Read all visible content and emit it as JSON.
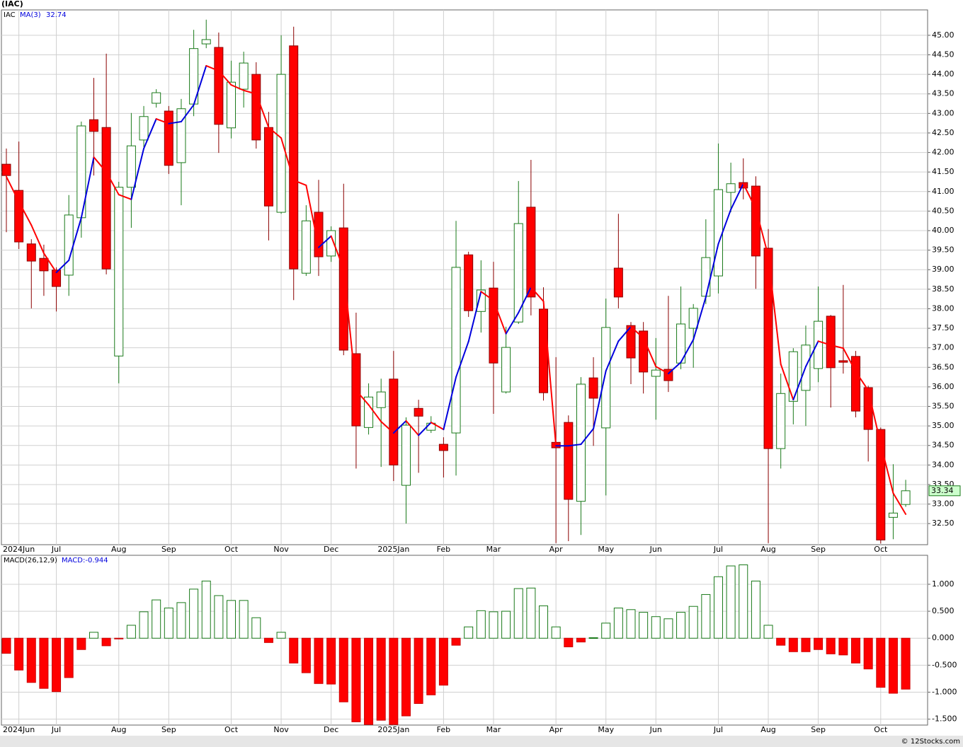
{
  "chart_data": [
    {
      "type": "candlestick",
      "title": "(IAC)",
      "name": "IAC",
      "categories": [
        null,
        "2024Jun",
        null,
        null,
        "Jul",
        null,
        null,
        null,
        null,
        "Aug",
        null,
        null,
        null,
        "Sep",
        null,
        null,
        null,
        null,
        "Oct",
        null,
        null,
        null,
        "Nov",
        null,
        null,
        null,
        "Dec",
        null,
        null,
        null,
        null,
        "2025Jan",
        null,
        null,
        null,
        "Feb",
        null,
        null,
        null,
        "Mar",
        null,
        null,
        null,
        null,
        "Apr",
        null,
        null,
        null,
        "May",
        null,
        null,
        null,
        "Jun",
        null,
        null,
        null,
        null,
        "Jul",
        null,
        null,
        null,
        "Aug",
        null,
        null,
        null,
        "Sep",
        null,
        null,
        null,
        null,
        "Oct",
        null,
        null
      ],
      "open": [
        41.7,
        41.03,
        39.66,
        39.29,
        38.99,
        38.86,
        40.33,
        42.84,
        42.64,
        36.79,
        41.11,
        42.32,
        43.26,
        43.06,
        41.74,
        43.24,
        44.78,
        44.69,
        42.63,
        43.62,
        44.0,
        42.64,
        40.47,
        44.73,
        38.91,
        40.47,
        39.35,
        40.07,
        36.85,
        34.96,
        35.47,
        36.2,
        33.48,
        35.45,
        34.89,
        34.53,
        34.82,
        39.38,
        37.93,
        38.53,
        35.87,
        37.66,
        40.6,
        37.99,
        34.58,
        35.09,
        33.07,
        36.23,
        34.95,
        39.04,
        37.57,
        37.43,
        36.27,
        36.45,
        36.61,
        37.5,
        38.32,
        38.84,
        40.98,
        41.23,
        41.14,
        39.55,
        34.42,
        35.63,
        35.91,
        36.47,
        37.81,
        36.67,
        36.78,
        35.98,
        34.91,
        32.66,
        32.99
      ],
      "high": [
        42.1,
        42.28,
        39.78,
        39.64,
        39.06,
        40.91,
        42.79,
        43.91,
        44.53,
        41.25,
        43.01,
        43.19,
        43.62,
        43.19,
        43.37,
        45.14,
        45.4,
        45.07,
        44.35,
        44.58,
        44.31,
        43.04,
        45.0,
        45.22,
        40.65,
        41.3,
        40.11,
        41.2,
        37.9,
        36.09,
        36.21,
        36.92,
        35.22,
        35.67,
        35.25,
        34.71,
        40.25,
        39.46,
        39.24,
        39.2,
        37.54,
        41.27,
        41.81,
        38.55,
        36.76,
        35.27,
        36.25,
        36.76,
        38.26,
        40.43,
        37.66,
        37.66,
        37.25,
        38.33,
        38.57,
        38.12,
        40.29,
        42.23,
        41.74,
        41.85,
        41.39,
        40.04,
        36.34,
        36.99,
        37.57,
        38.57,
        37.84,
        38.61,
        36.92,
        36.03,
        34.96,
        34.02,
        33.62
      ],
      "low": [
        39.96,
        39.53,
        38.01,
        38.33,
        37.93,
        38.33,
        39.82,
        41.41,
        38.88,
        36.09,
        40.07,
        42.14,
        43.15,
        41.45,
        40.65,
        42.93,
        44.67,
        41.99,
        42.36,
        43.15,
        42.1,
        39.75,
        40.43,
        38.22,
        38.84,
        38.84,
        39.2,
        36.81,
        33.91,
        34.78,
        33.95,
        33.59,
        32.5,
        33.8,
        34.82,
        33.68,
        33.73,
        37.79,
        37.39,
        35.31,
        35.83,
        37.61,
        37.83,
        35.65,
        32.0,
        32.05,
        32.21,
        34.49,
        33.22,
        38.01,
        36.07,
        35.83,
        35.16,
        35.87,
        36.45,
        36.49,
        38.12,
        38.39,
        40.47,
        40.8,
        38.51,
        32.0,
        33.91,
        35.04,
        35.0,
        36.12,
        35.47,
        36.34,
        35.22,
        34.09,
        31.99,
        32.1,
        32.93
      ],
      "close": [
        41.41,
        39.71,
        39.22,
        38.97,
        38.57,
        40.4,
        42.68,
        42.54,
        39.02,
        41.11,
        42.17,
        42.92,
        43.53,
        41.67,
        43.12,
        44.66,
        44.89,
        42.72,
        43.8,
        44.29,
        42.32,
        40.63,
        44.0,
        39.02,
        40.25,
        39.33,
        40.0,
        36.94,
        35.0,
        35.74,
        35.87,
        34.0,
        35.02,
        35.25,
        35.07,
        34.37,
        39.06,
        37.95,
        38.48,
        36.61,
        37.01,
        40.18,
        38.3,
        35.85,
        34.44,
        33.12,
        36.07,
        35.71,
        37.52,
        38.3,
        36.74,
        36.38,
        36.43,
        36.16,
        37.61,
        38.01,
        39.31,
        41.05,
        41.2,
        41.09,
        39.35,
        34.42,
        35.83,
        36.9,
        37.07,
        37.68,
        36.49,
        36.63,
        35.38,
        34.91,
        32.08,
        32.77,
        33.34
      ],
      "up_color": "#1a7a1a",
      "down_color": "#ff0000",
      "ma": {
        "name": "MA(3)",
        "up_color": "#0000dd",
        "down_color": "#ff0000",
        "values": [
          41.38,
          40.74,
          40.14,
          39.42,
          38.93,
          39.24,
          40.33,
          41.88,
          41.5,
          40.92,
          40.8,
          42.1,
          42.86,
          42.74,
          42.79,
          43.22,
          44.22,
          44.09,
          43.73,
          43.59,
          43.5,
          42.64,
          42.37,
          41.29,
          41.16,
          39.57,
          39.86,
          39.02,
          35.91,
          35.54,
          35.11,
          34.82,
          35.13,
          34.76,
          35.09,
          34.91,
          36.25,
          37.16,
          38.44,
          38.21,
          37.36,
          37.9,
          38.55,
          38.19,
          34.49,
          34.49,
          34.53,
          34.93,
          36.41,
          37.17,
          37.54,
          37.25,
          36.52,
          36.34,
          36.63,
          37.21,
          38.3,
          39.66,
          40.54,
          41.2,
          40.56,
          39.35,
          36.58,
          35.67,
          36.52,
          37.17,
          37.07,
          36.99,
          36.39,
          35.91,
          34.53,
          33.28,
          32.74
        ]
      },
      "ylim": [
        31.96,
        45.65
      ],
      "yticks": [
        {
          "value": 32.5,
          "label": "32.50"
        },
        {
          "value": 33,
          "label": "33.00"
        },
        {
          "value": 33.5,
          "label": "33.50"
        },
        {
          "value": 34,
          "label": "34.00"
        },
        {
          "value": 34.5,
          "label": "34.50"
        },
        {
          "value": 35,
          "label": "35.00"
        },
        {
          "value": 35.5,
          "label": "35.50"
        },
        {
          "value": 36,
          "label": "36.00"
        },
        {
          "value": 36.5,
          "label": "36.50"
        },
        {
          "value": 37,
          "label": "37.00"
        },
        {
          "value": 37.5,
          "label": "37.50"
        },
        {
          "value": 38,
          "label": "38.00"
        },
        {
          "value": 38.5,
          "label": "38.50"
        },
        {
          "value": 39,
          "label": "39.00"
        },
        {
          "value": 39.5,
          "label": "39.50"
        },
        {
          "value": 40,
          "label": "40.00"
        },
        {
          "value": 40.5,
          "label": "40.50"
        },
        {
          "value": 41,
          "label": "41.00"
        },
        {
          "value": 41.5,
          "label": "41.50"
        },
        {
          "value": 42,
          "label": "42.00"
        },
        {
          "value": 42.5,
          "label": "42.50"
        },
        {
          "value": 43,
          "label": "43.00"
        },
        {
          "value": 43.5,
          "label": "43.50"
        },
        {
          "value": 44,
          "label": "44.00"
        },
        {
          "value": 44.5,
          "label": "44.50"
        },
        {
          "value": 45,
          "label": "45.00"
        }
      ],
      "grid": true
    },
    {
      "type": "bar",
      "name": "MACD(26,12,9)",
      "value_label": "MACD:-0.944",
      "up_color": "#1a7a1a",
      "down_color": "#ff0000",
      "values": [
        -0.28,
        -0.59,
        -0.82,
        -0.93,
        -0.99,
        -0.73,
        -0.21,
        0.11,
        -0.14,
        -0.01,
        0.24,
        0.49,
        0.71,
        0.56,
        0.66,
        0.91,
        1.06,
        0.79,
        0.7,
        0.7,
        0.38,
        -0.08,
        0.11,
        -0.46,
        -0.64,
        -0.84,
        -0.85,
        -1.18,
        -1.55,
        -1.6,
        -1.52,
        -1.6,
        -1.44,
        -1.21,
        -1.05,
        -0.87,
        -0.13,
        0.21,
        0.51,
        0.49,
        0.5,
        0.92,
        0.93,
        0.6,
        0.21,
        -0.16,
        -0.07,
        0.01,
        0.28,
        0.56,
        0.53,
        0.48,
        0.4,
        0.36,
        0.48,
        0.59,
        0.81,
        1.14,
        1.34,
        1.36,
        1.06,
        0.24,
        -0.13,
        -0.25,
        -0.25,
        -0.21,
        -0.29,
        -0.31,
        -0.46,
        -0.57,
        -0.91,
        -1.02,
        -0.944
      ],
      "ylim": [
        -1.61,
        1.537
      ],
      "yticks": [
        {
          "value": -1.5,
          "label": "-1.500"
        },
        {
          "value": -1,
          "label": "-1.000"
        },
        {
          "value": -0.5,
          "label": "-0.500"
        },
        {
          "value": 0,
          "label": "0.000"
        },
        {
          "value": 0.5,
          "label": "0.500"
        },
        {
          "value": 1,
          "label": "1.000"
        }
      ],
      "grid": true
    }
  ],
  "footer": "© 12Stocks.com"
}
